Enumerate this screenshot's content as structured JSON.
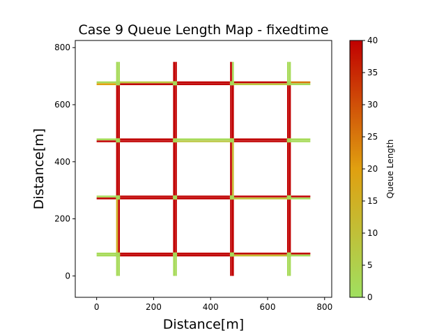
{
  "chart_data": {
    "type": "heatmap",
    "title": "Case 9 Queue Length Map - fixedtime",
    "xlabel": "Distance[m]",
    "ylabel": "Distance[m]",
    "xlim": [
      -75,
      825
    ],
    "ylim": [
      -75,
      825
    ],
    "xticks": [
      0,
      200,
      400,
      600,
      800
    ],
    "yticks": [
      0,
      200,
      400,
      600,
      800
    ],
    "colorbar": {
      "label": "Queue Length",
      "range": [
        0,
        40
      ],
      "ticks": [
        0,
        5,
        10,
        15,
        20,
        25,
        30,
        35,
        40
      ],
      "colors": [
        "#a0e060",
        "#e0a010",
        "#c00000"
      ]
    },
    "grid_lines": {
      "horizontal_y": [
        75,
        275,
        475,
        675
      ],
      "vertical_x": [
        75,
        275,
        475,
        675
      ],
      "outer_extent": [
        0,
        750
      ]
    },
    "horizontal_segments": [
      {
        "y": 75,
        "x": [
          0,
          75
        ],
        "queue_upper": 2,
        "queue_lower": 2
      },
      {
        "y": 75,
        "x": [
          75,
          275
        ],
        "queue_upper": 40,
        "queue_lower": 40
      },
      {
        "y": 75,
        "x": [
          275,
          475
        ],
        "queue_upper": 40,
        "queue_lower": 40
      },
      {
        "y": 75,
        "x": [
          475,
          675
        ],
        "queue_upper": 40,
        "queue_lower": 12
      },
      {
        "y": 75,
        "x": [
          675,
          750
        ],
        "queue_upper": 40,
        "queue_lower": 2
      },
      {
        "y": 275,
        "x": [
          0,
          75
        ],
        "queue_upper": 2,
        "queue_lower": 40
      },
      {
        "y": 275,
        "x": [
          75,
          275
        ],
        "queue_upper": 40,
        "queue_lower": 40
      },
      {
        "y": 275,
        "x": [
          275,
          475
        ],
        "queue_upper": 40,
        "queue_lower": 40
      },
      {
        "y": 275,
        "x": [
          475,
          675
        ],
        "queue_upper": 40,
        "queue_lower": 10
      },
      {
        "y": 275,
        "x": [
          675,
          750
        ],
        "queue_upper": 40,
        "queue_lower": 2
      },
      {
        "y": 475,
        "x": [
          0,
          75
        ],
        "queue_upper": 2,
        "queue_lower": 40
      },
      {
        "y": 475,
        "x": [
          75,
          275
        ],
        "queue_upper": 40,
        "queue_lower": 40
      },
      {
        "y": 475,
        "x": [
          275,
          475
        ],
        "queue_upper": 2,
        "queue_lower": 8
      },
      {
        "y": 475,
        "x": [
          475,
          675
        ],
        "queue_upper": 40,
        "queue_lower": 40
      },
      {
        "y": 475,
        "x": [
          675,
          750
        ],
        "queue_upper": 2,
        "queue_lower": 2
      },
      {
        "y": 675,
        "x": [
          0,
          75
        ],
        "queue_upper": 2,
        "queue_lower": 20
      },
      {
        "y": 675,
        "x": [
          75,
          275
        ],
        "queue_upper": 8,
        "queue_lower": 40
      },
      {
        "y": 675,
        "x": [
          275,
          475
        ],
        "queue_upper": 40,
        "queue_lower": 40
      },
      {
        "y": 675,
        "x": [
          475,
          675
        ],
        "queue_upper": 40,
        "queue_lower": 8
      },
      {
        "y": 675,
        "x": [
          675,
          750
        ],
        "queue_upper": 25,
        "queue_lower": 2
      }
    ],
    "vertical_segments": [
      {
        "x": 75,
        "y": [
          0,
          75
        ],
        "queue_left": 2,
        "queue_right": 2
      },
      {
        "x": 75,
        "y": [
          75,
          275
        ],
        "queue_left": 15,
        "queue_right": 40
      },
      {
        "x": 75,
        "y": [
          275,
          475
        ],
        "queue_left": 40,
        "queue_right": 40
      },
      {
        "x": 75,
        "y": [
          475,
          675
        ],
        "queue_left": 40,
        "queue_right": 40
      },
      {
        "x": 75,
        "y": [
          675,
          750
        ],
        "queue_left": 2,
        "queue_right": 2
      },
      {
        "x": 275,
        "y": [
          0,
          75
        ],
        "queue_left": 2,
        "queue_right": 2
      },
      {
        "x": 275,
        "y": [
          75,
          275
        ],
        "queue_left": 40,
        "queue_right": 40
      },
      {
        "x": 275,
        "y": [
          275,
          475
        ],
        "queue_left": 40,
        "queue_right": 40
      },
      {
        "x": 275,
        "y": [
          475,
          675
        ],
        "queue_left": 40,
        "queue_right": 40
      },
      {
        "x": 275,
        "y": [
          675,
          750
        ],
        "queue_left": 40,
        "queue_right": 40
      },
      {
        "x": 475,
        "y": [
          0,
          75
        ],
        "queue_left": 40,
        "queue_right": 40
      },
      {
        "x": 475,
        "y": [
          75,
          275
        ],
        "queue_left": 40,
        "queue_right": 40
      },
      {
        "x": 475,
        "y": [
          275,
          475
        ],
        "queue_left": 40,
        "queue_right": 12
      },
      {
        "x": 475,
        "y": [
          475,
          675
        ],
        "queue_left": 40,
        "queue_right": 40
      },
      {
        "x": 475,
        "y": [
          675,
          750
        ],
        "queue_left": 40,
        "queue_right": 2
      },
      {
        "x": 675,
        "y": [
          0,
          75
        ],
        "queue_left": 2,
        "queue_right": 2
      },
      {
        "x": 675,
        "y": [
          75,
          275
        ],
        "queue_left": 40,
        "queue_right": 40
      },
      {
        "x": 675,
        "y": [
          275,
          475
        ],
        "queue_left": 40,
        "queue_right": 40
      },
      {
        "x": 675,
        "y": [
          475,
          675
        ],
        "queue_left": 40,
        "queue_right": 40
      },
      {
        "x": 675,
        "y": [
          675,
          750
        ],
        "queue_left": 2,
        "queue_right": 2
      }
    ]
  }
}
